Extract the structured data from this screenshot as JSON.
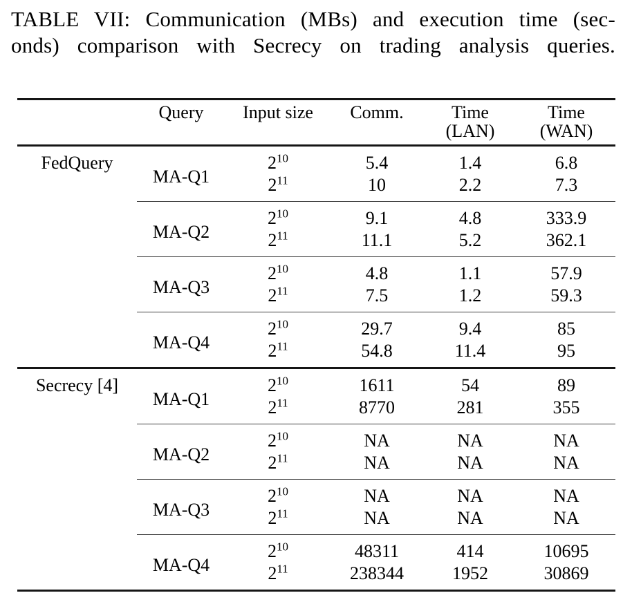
{
  "title": {
    "line1": "TABLE VII: Communication (MBs) and execution time (sec-",
    "line2": "onds) comparison with Secrecy on trading analysis queries."
  },
  "table": {
    "headers": {
      "system": "",
      "query": "Query",
      "input": "Input size",
      "comm": "Comm.",
      "lan": {
        "l1": "Time",
        "l2": "(LAN)"
      },
      "wan": {
        "l1": "Time",
        "l2": "(WAN)"
      }
    },
    "sections": [
      {
        "system": "FedQuery",
        "groups": [
          {
            "query": "MA-Q1",
            "rows": [
              {
                "base": "2",
                "exp": "10",
                "comm": "5.4",
                "lan": "1.4",
                "wan": "6.8"
              },
              {
                "base": "2",
                "exp": "11",
                "comm": "10",
                "lan": "2.2",
                "wan": "7.3"
              }
            ]
          },
          {
            "query": "MA-Q2",
            "rows": [
              {
                "base": "2",
                "exp": "10",
                "comm": "9.1",
                "lan": "4.8",
                "wan": "333.9"
              },
              {
                "base": "2",
                "exp": "11",
                "comm": "11.1",
                "lan": "5.2",
                "wan": "362.1"
              }
            ]
          },
          {
            "query": "MA-Q3",
            "rows": [
              {
                "base": "2",
                "exp": "10",
                "comm": "4.8",
                "lan": "1.1",
                "wan": "57.9"
              },
              {
                "base": "2",
                "exp": "11",
                "comm": "7.5",
                "lan": "1.2",
                "wan": "59.3"
              }
            ]
          },
          {
            "query": "MA-Q4",
            "rows": [
              {
                "base": "2",
                "exp": "10",
                "comm": "29.7",
                "lan": "9.4",
                "wan": "85"
              },
              {
                "base": "2",
                "exp": "11",
                "comm": "54.8",
                "lan": "11.4",
                "wan": "95"
              }
            ]
          }
        ]
      },
      {
        "system": "Secrecy [4]",
        "groups": [
          {
            "query": "MA-Q1",
            "rows": [
              {
                "base": "2",
                "exp": "10",
                "comm": "1611",
                "lan": "54",
                "wan": "89"
              },
              {
                "base": "2",
                "exp": "11",
                "comm": "8770",
                "lan": "281",
                "wan": "355"
              }
            ]
          },
          {
            "query": "MA-Q2",
            "rows": [
              {
                "base": "2",
                "exp": "10",
                "comm": "NA",
                "lan": "NA",
                "wan": "NA"
              },
              {
                "base": "2",
                "exp": "11",
                "comm": "NA",
                "lan": "NA",
                "wan": "NA"
              }
            ]
          },
          {
            "query": "MA-Q3",
            "rows": [
              {
                "base": "2",
                "exp": "10",
                "comm": "NA",
                "lan": "NA",
                "wan": "NA"
              },
              {
                "base": "2",
                "exp": "11",
                "comm": "NA",
                "lan": "NA",
                "wan": "NA"
              }
            ]
          },
          {
            "query": "MA-Q4",
            "rows": [
              {
                "base": "2",
                "exp": "10",
                "comm": "48311",
                "lan": "414",
                "wan": "10695"
              },
              {
                "base": "2",
                "exp": "11",
                "comm": "238344",
                "lan": "1952",
                "wan": "30869"
              }
            ]
          }
        ]
      }
    ]
  }
}
